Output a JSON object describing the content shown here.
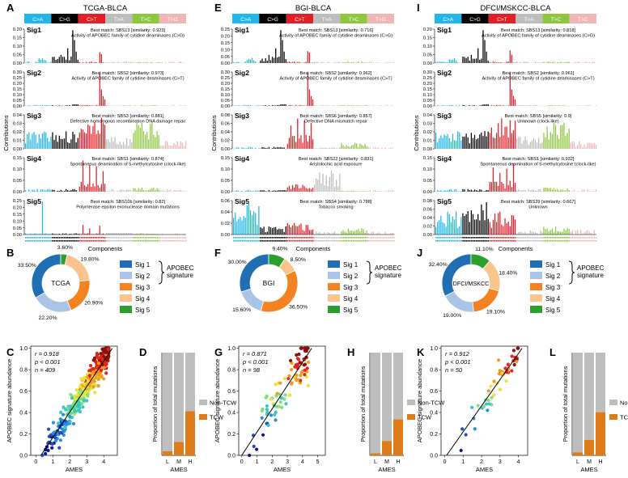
{
  "colors": {
    "C>A": "#1fb6ea",
    "C>G": "#000000",
    "C>T": "#e31e24",
    "T>A": "#bdbdbd",
    "T>C": "#8dc63f",
    "T>G": "#f2b5b5",
    "sig1": "#1f6fb2",
    "sig2": "#a9c4e6",
    "sig3": "#f58220",
    "sig4": "#fbc48c",
    "sig5": "#2ca02c",
    "nontcw": "#bebebe",
    "tcw": "#e07b1a"
  },
  "shared": {
    "mutation_types": [
      "C>A",
      "C>G",
      "C>T",
      "T>A",
      "T>C",
      "T>G"
    ],
    "sig_labels": [
      "Sig1",
      "Sig2",
      "Sig3",
      "Sig4",
      "Sig5"
    ],
    "contributions_label": "Contributions",
    "components_label": "Components",
    "legend_items": [
      "Sig 1",
      "Sig 2",
      "Sig 3",
      "Sig 4",
      "Sig 5"
    ],
    "apobec_label_1": "APOBEC",
    "apobec_label_2": "signature",
    "scatter_xlabel": "AMES",
    "scatter_ylabel": "APOBEC signature abundance",
    "bar_ylabel": "Proportion of total mutations",
    "bar_xlabel": "AMES",
    "bar_categories": [
      "L",
      "M",
      "H"
    ],
    "bar_legend": [
      "Non-TCW",
      "TCW"
    ]
  },
  "panels": [
    {
      "letters": {
        "sig": "A",
        "donut": "B",
        "scatter": "C",
        "bar": "D"
      },
      "title": "TCGA-BLCA",
      "signatures": [
        {
          "ticks": [
            "0.20",
            "0.15",
            "0.10",
            "0.05",
            "0.00"
          ],
          "max": 0.2,
          "line1": "Best match: SBS13 [similarity: 0.923]",
          "line2": "Activity of APOBEC family of cytidine deaminases (C>G)",
          "profile": "sbs13"
        },
        {
          "ticks": [
            "0.30",
            "0.25",
            "0.20",
            "0.15",
            "0.10",
            "0.05",
            "0.00"
          ],
          "max": 0.3,
          "line1": "Best match: SBS2 [similarity: 0.973]",
          "line2": "Activity of APOBEC family of cytidine deaminases (C>T)",
          "profile": "sbs2"
        },
        {
          "ticks": [
            "0.04",
            "0.03",
            "0.02",
            "0.01",
            "0.00"
          ],
          "max": 0.04,
          "line1": "Best match: SBS3 [similarity: 0.881]",
          "line2": "Defective homologous recombination DNA damage repair",
          "profile": "flat"
        },
        {
          "ticks": [
            "0.15",
            "0.10",
            "0.05",
            "0.00"
          ],
          "max": 0.15,
          "line1": "Best match: SBS1 [similarity: 0.874]",
          "line2": "Spontaneous deamination of 5-methylcytosine (clock-like)",
          "profile": "sbs1"
        },
        {
          "ticks": [
            "0.25",
            "0.20",
            "0.15",
            "0.10",
            "0.05",
            "0.00"
          ],
          "max": 0.25,
          "line1": "Best match: SBS10b [similarity: 0.82]",
          "line2": "Polymerase epsilon exonuclease domain mutations",
          "profile": "sbs10b"
        }
      ],
      "donut_center": "TCGA",
      "donut_values": [
        33.5,
        22.2,
        20.9,
        19.8,
        3.6
      ],
      "donut_labels": [
        "33.50%",
        "22.20%",
        "20.90%",
        "19.80%",
        "3.60%"
      ],
      "stat_r": "r = 0.918",
      "stat_p": "p < 0.001",
      "stat_n": "n = 409",
      "x_ticks": [
        "0",
        "1",
        "2",
        "3",
        "4"
      ],
      "x_range": [
        -0.3,
        4.8
      ],
      "y_ticks": [
        "0.0",
        "0.2",
        "0.4",
        "0.6",
        "0.8",
        "1.0"
      ],
      "y_range": [
        0,
        1.02
      ],
      "line": [
        [
          0.3,
          0.0
        ],
        [
          4.5,
          1.0
        ]
      ],
      "n_points": 409,
      "scatter_spread": 0.09,
      "bar_tcw": [
        0.04,
        0.13,
        0.43
      ]
    },
    {
      "letters": {
        "sig": "E",
        "donut": "F",
        "scatter": "G",
        "bar": "H"
      },
      "title": "BGI-BLCA",
      "signatures": [
        {
          "ticks": [
            "0.25",
            "0.20",
            "0.15",
            "0.10",
            "0.05",
            "0.00"
          ],
          "max": 0.25,
          "line1": "Best match: SBS13 [similarity: 0.716]",
          "line2": "Activity of APOBEC family of cytidine deaminases (C>G)",
          "profile": "sbs13"
        },
        {
          "ticks": [
            "0.30",
            "0.25",
            "0.20",
            "0.15",
            "0.10",
            "0.05",
            "0.00"
          ],
          "max": 0.3,
          "line1": "Best match: SBS2 [similarity: 0.962]",
          "line2": "Activity of APOBEC family of cytidine deaminases (C>T)",
          "profile": "sbs2"
        },
        {
          "ticks": [
            "0.08",
            "0.06",
            "0.04",
            "0.02",
            "0.00"
          ],
          "max": 0.08,
          "line1": "Best match: SBS6 [similarity: 0.857]",
          "line2": "Defective DNA mismatch repair",
          "profile": "sbs6"
        },
        {
          "ticks": [
            "0.15",
            "0.10",
            "0.05",
            "0.00"
          ],
          "max": 0.15,
          "line1": "Best match: SBS22 [similarity: 0.831]",
          "line2": "Aristolochic acid exposure",
          "profile": "sbs22"
        },
        {
          "ticks": [
            "0.06",
            "0.04",
            "0.02",
            "0.00"
          ],
          "max": 0.07,
          "line1": "Best match: SBS4 [similarity: 0.788]",
          "line2": "Tobacco smoking",
          "profile": "sbs4"
        }
      ],
      "donut_center": "BGI",
      "donut_values": [
        30.0,
        15.6,
        36.5,
        8.5,
        9.4
      ],
      "donut_labels": [
        "30.00%",
        "15.60%",
        "36.50%",
        "8.50%",
        "9.40%"
      ],
      "stat_r": "r = 0.871",
      "stat_p": "p < 0.001",
      "stat_n": "n = 98",
      "x_ticks": [
        "0",
        "1",
        "2",
        "3",
        "4",
        "5"
      ],
      "x_range": [
        -0.2,
        5.5
      ],
      "y_ticks": [
        "0.0",
        "0.2",
        "0.4",
        "0.6",
        "0.8",
        "1.0"
      ],
      "y_range": [
        0,
        1.02
      ],
      "line": [
        [
          0.0,
          0.0
        ],
        [
          4.6,
          1.0
        ]
      ],
      "n_points": 98,
      "scatter_spread": 0.14,
      "bar_tcw": [
        0.02,
        0.14,
        0.35
      ]
    },
    {
      "letters": {
        "sig": "I",
        "donut": "J",
        "scatter": "K",
        "bar": "L"
      },
      "title": "DFCI/MSKCC-BLCA",
      "signatures": [
        {
          "ticks": [
            "0.20",
            "0.15",
            "0.10",
            "0.05",
            "0.00"
          ],
          "max": 0.2,
          "line1": "Best match: SBS13 [similarity: 0.818]",
          "line2": "Activity of APOBEC family of cytidine deaminases (C>G)",
          "profile": "sbs13"
        },
        {
          "ticks": [
            "0.30",
            "0.25",
            "0.20",
            "0.15",
            "0.10",
            "0.05",
            "0.00"
          ],
          "max": 0.3,
          "line1": "Best match: SBS2 [similarity: 0.961]",
          "line2": "Activity of APOBEC family of cytidine deaminases (C>T)",
          "profile": "sbs2"
        },
        {
          "ticks": [
            "0.04",
            "0.03",
            "0.02",
            "0.01",
            "0.00"
          ],
          "max": 0.04,
          "line1": "Best match: SBS5 [similarity: 0.9]",
          "line2": "Unknown (clock-like)",
          "profile": "flat"
        },
        {
          "ticks": [
            "0.15",
            "0.10",
            "0.05",
            "0.00"
          ],
          "max": 0.15,
          "line1": "Best match: SBS1 [similarity: 0.932]",
          "line2": "Spontaneous deamination of 5-methylcytosine (clock-like)",
          "profile": "sbs1"
        },
        {
          "ticks": [
            "0.08",
            "0.06",
            "0.04",
            "0.02",
            "0.00"
          ],
          "max": 0.08,
          "line1": "Best match: SBS39 [similarity: 0.667]",
          "line2": "Unknown",
          "profile": "sbs39"
        }
      ],
      "donut_center": "DFCI/MSKCC",
      "donut_values": [
        32.4,
        19.0,
        19.1,
        18.4,
        11.1
      ],
      "donut_labels": [
        "32.40%",
        "19.00%",
        "19.10%",
        "18.40%",
        "11.10%"
      ],
      "stat_r": "r = 0.912",
      "stat_p": "p < 0.001",
      "stat_n": "n = 50",
      "x_ticks": [
        "0",
        "1",
        "2",
        "3",
        "4"
      ],
      "x_range": [
        -0.2,
        4.5
      ],
      "y_ticks": [
        "0.0",
        "0.2",
        "0.4",
        "0.6",
        "0.8",
        "1.0"
      ],
      "y_range": [
        0,
        1.02
      ],
      "line": [
        [
          0.1,
          0.0
        ],
        [
          4.2,
          1.0
        ]
      ],
      "n_points": 50,
      "scatter_spread": 0.1,
      "bar_tcw": [
        0.03,
        0.15,
        0.42
      ]
    }
  ],
  "chart_data": [
    {
      "type": "bar",
      "title": "TCGA-BLCA",
      "subplots": [
        "Sig1",
        "Sig2",
        "Sig3",
        "Sig4",
        "Sig5"
      ],
      "xlabel": "Components",
      "ylabel": "Contributions",
      "categories": [
        "C>A",
        "C>G",
        "C>T",
        "T>A",
        "T>C",
        "T>G"
      ]
    },
    {
      "type": "pie",
      "center_label": "TCGA",
      "categories": [
        "Sig 1",
        "Sig 2",
        "Sig 3",
        "Sig 4",
        "Sig 5"
      ],
      "values": [
        33.5,
        22.2,
        20.9,
        19.8,
        3.6
      ]
    },
    {
      "type": "scatter",
      "xlabel": "AMES",
      "ylabel": "APOBEC signature abundance",
      "annotations": [
        "r = 0.918",
        "p < 0.001",
        "n = 409"
      ],
      "xlim": [
        0,
        4
      ],
      "ylim": [
        0,
        1.0
      ]
    },
    {
      "type": "bar",
      "stacked": true,
      "categories": [
        "L",
        "M",
        "H"
      ],
      "series": [
        {
          "name": "TCW",
          "values": [
            0.04,
            0.13,
            0.43
          ]
        },
        {
          "name": "Non-TCW",
          "values": [
            0.96,
            0.87,
            0.57
          ]
        }
      ],
      "xlabel": "AMES",
      "ylabel": "Proportion of total mutations"
    },
    {
      "type": "bar",
      "title": "BGI-BLCA",
      "subplots": [
        "Sig1",
        "Sig2",
        "Sig3",
        "Sig4",
        "Sig5"
      ],
      "xlabel": "Components",
      "ylabel": "Contributions"
    },
    {
      "type": "pie",
      "center_label": "BGI",
      "categories": [
        "Sig 1",
        "Sig 2",
        "Sig 3",
        "Sig 4",
        "Sig 5"
      ],
      "values": [
        30.0,
        15.6,
        36.5,
        8.5,
        9.4
      ]
    },
    {
      "type": "scatter",
      "xlabel": "AMES",
      "ylabel": "APOBEC signature abundance",
      "annotations": [
        "r = 0.871",
        "p < 0.001",
        "n = 98"
      ],
      "xlim": [
        0,
        5
      ],
      "ylim": [
        0,
        1.0
      ]
    },
    {
      "type": "bar",
      "stacked": true,
      "categories": [
        "L",
        "M",
        "H"
      ],
      "series": [
        {
          "name": "TCW",
          "values": [
            0.02,
            0.14,
            0.35
          ]
        },
        {
          "name": "Non-TCW",
          "values": [
            0.98,
            0.86,
            0.65
          ]
        }
      ],
      "xlabel": "AMES",
      "ylabel": "Proportion of total mutations"
    },
    {
      "type": "bar",
      "title": "DFCI/MSKCC-BLCA",
      "subplots": [
        "Sig1",
        "Sig2",
        "Sig3",
        "Sig4",
        "Sig5"
      ],
      "xlabel": "Components",
      "ylabel": "Contributions"
    },
    {
      "type": "pie",
      "center_label": "DFCI/MSKCC",
      "categories": [
        "Sig 1",
        "Sig 2",
        "Sig 3",
        "Sig 4",
        "Sig 5"
      ],
      "values": [
        32.4,
        19.0,
        19.1,
        18.4,
        11.1
      ]
    },
    {
      "type": "scatter",
      "xlabel": "AMES",
      "ylabel": "APOBEC signature abundance",
      "annotations": [
        "r = 0.912",
        "p < 0.001",
        "n = 50"
      ],
      "xlim": [
        0,
        4
      ],
      "ylim": [
        0,
        1.0
      ]
    },
    {
      "type": "bar",
      "stacked": true,
      "categories": [
        "L",
        "M",
        "H"
      ],
      "series": [
        {
          "name": "TCW",
          "values": [
            0.03,
            0.15,
            0.42
          ]
        },
        {
          "name": "Non-TCW",
          "values": [
            0.97,
            0.85,
            0.58
          ]
        }
      ],
      "xlabel": "AMES",
      "ylabel": "Proportion of total mutations"
    }
  ]
}
